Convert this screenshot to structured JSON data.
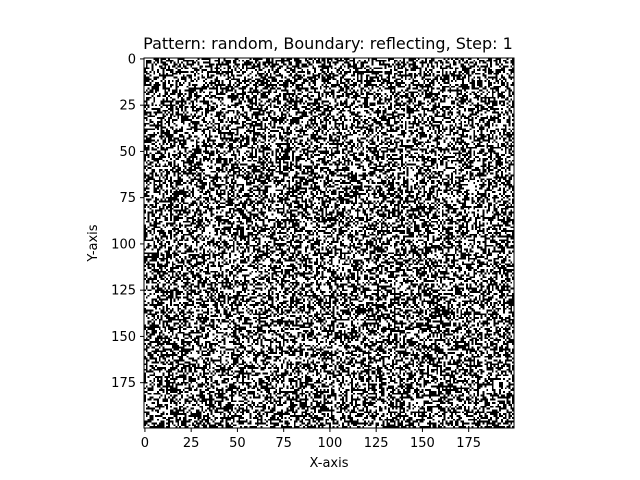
{
  "chart_data": {
    "type": "heatmap",
    "title": "Pattern: random, Boundary: reflecting, Step: 1",
    "xlabel": "X-axis",
    "ylabel": "Y-axis",
    "grid_size": [
      200,
      200
    ],
    "xlim": [
      0,
      200
    ],
    "ylim": [
      200,
      0
    ],
    "xticks": [
      0,
      25,
      50,
      75,
      100,
      125,
      150,
      175
    ],
    "yticks": [
      0,
      25,
      50,
      75,
      100,
      125,
      150,
      175
    ],
    "cell_states": [
      0,
      1
    ],
    "colormap": {
      "0": "#ffffff",
      "1": "#000000"
    },
    "alive_fraction": 0.5,
    "pattern": "random",
    "grid": false
  }
}
